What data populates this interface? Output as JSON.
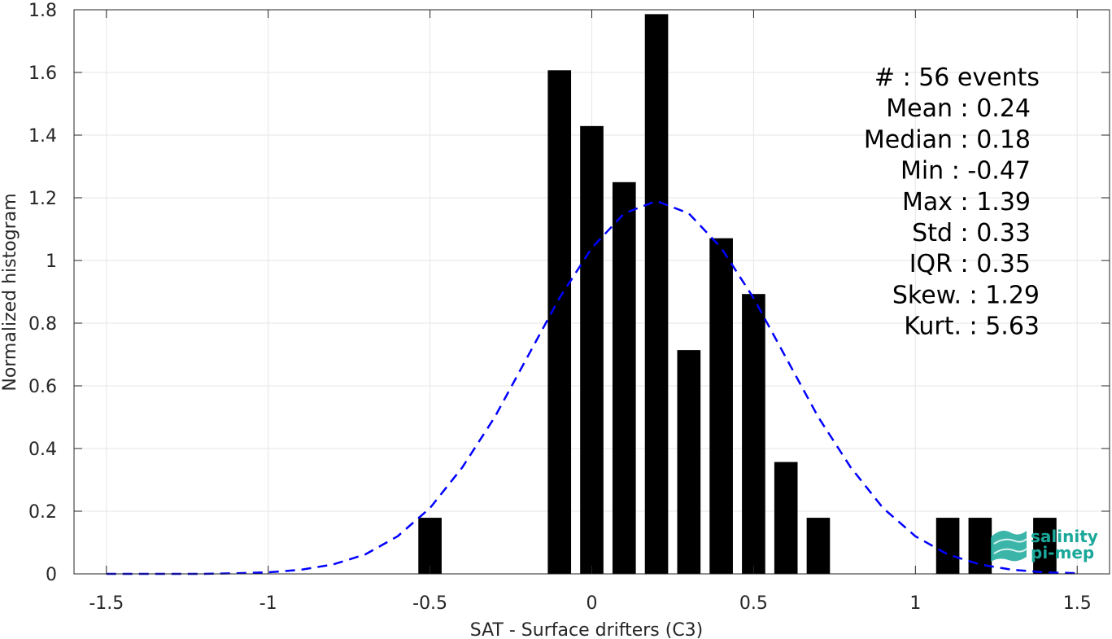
{
  "chart_data": {
    "type": "bar",
    "xlabel": "SAT - Surface drifters (C3)",
    "ylabel": "Normalized histogram",
    "xlim": [
      -1.6,
      1.6
    ],
    "ylim": [
      0,
      1.8
    ],
    "x_ticks": [
      -1.5,
      -1,
      -0.5,
      0,
      0.5,
      1,
      1.5
    ],
    "x_tick_labels": [
      "-1.5",
      "-1",
      "-0.5",
      "0",
      "0.5",
      "1",
      "1.5"
    ],
    "y_ticks": [
      0,
      0.2,
      0.4,
      0.6,
      0.8,
      1,
      1.2,
      1.4,
      1.6,
      1.8
    ],
    "y_tick_labels": [
      "0",
      "0.2",
      "0.4",
      "0.6",
      "0.8",
      "1",
      "1.2",
      "1.4",
      "1.6",
      "1.8"
    ],
    "grid": true,
    "bin_width": 0.1,
    "bars": [
      {
        "x": -0.5,
        "value": 0.179
      },
      {
        "x": -0.1,
        "value": 1.607
      },
      {
        "x": 0.0,
        "value": 1.429
      },
      {
        "x": 0.1,
        "value": 1.25
      },
      {
        "x": 0.2,
        "value": 1.786
      },
      {
        "x": 0.3,
        "value": 0.714
      },
      {
        "x": 0.4,
        "value": 1.071
      },
      {
        "x": 0.5,
        "value": 0.893
      },
      {
        "x": 0.6,
        "value": 0.357
      },
      {
        "x": 0.7,
        "value": 0.179
      },
      {
        "x": 1.1,
        "value": 0.179
      },
      {
        "x": 1.2,
        "value": 0.179
      },
      {
        "x": 1.4,
        "value": 0.179
      }
    ],
    "bar_color": "#000000",
    "fit_curve": {
      "style": "dashed",
      "color": "#0000ff",
      "x": [
        -1.5,
        -1.4,
        -1.3,
        -1.2,
        -1.1,
        -1.0,
        -0.9,
        -0.8,
        -0.7,
        -0.6,
        -0.5,
        -0.4,
        -0.3,
        -0.2,
        -0.1,
        0.0,
        0.1,
        0.2,
        0.3,
        0.4,
        0.5,
        0.6,
        0.7,
        0.8,
        0.9,
        1.0,
        1.1,
        1.2,
        1.3,
        1.4,
        1.5
      ],
      "y": [
        0.0,
        0.0,
        0.0,
        0.0,
        0.002,
        0.005,
        0.013,
        0.03,
        0.062,
        0.12,
        0.21,
        0.34,
        0.5,
        0.69,
        0.88,
        1.04,
        1.15,
        1.19,
        1.15,
        1.04,
        0.88,
        0.69,
        0.5,
        0.34,
        0.21,
        0.12,
        0.062,
        0.03,
        0.013,
        0.005,
        0.002
      ]
    },
    "annotations": [
      "#  : 56 events",
      "Mean : 0.24",
      "Median : 0.18",
      "Min : -0.47",
      "Max : 1.39",
      "Std : 0.33",
      "IQR : 0.35",
      "Skew. : 1.29",
      "Kurt. : 5.63"
    ]
  },
  "logo": {
    "line1": "salinity",
    "line2": "pi-mep"
  },
  "colors": {
    "axis": "#262626",
    "grid": "#e6e6e6",
    "bar": "#000000",
    "fit": "#0000ff",
    "logo": "#1aa89a"
  }
}
